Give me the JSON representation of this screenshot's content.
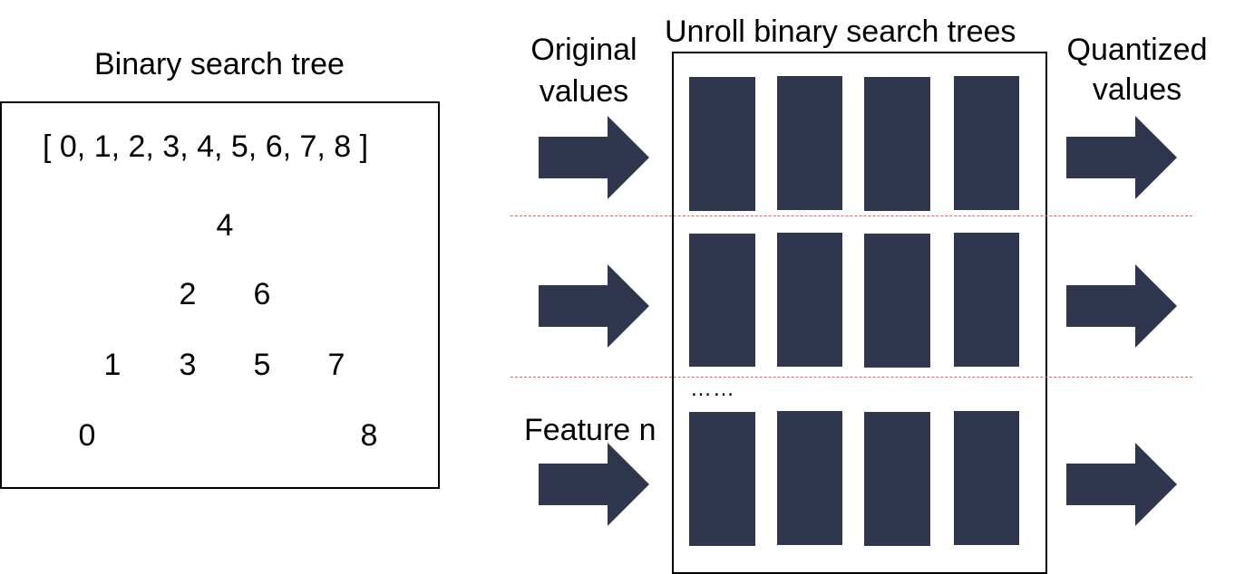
{
  "left_panel": {
    "title": "Binary search tree",
    "array_label": "[ 0, 1, 2, 3, 4, 5, 6, 7, 8 ]",
    "tree": {
      "level1": [
        "4"
      ],
      "level2": [
        "2",
        "6"
      ],
      "level3": [
        "1",
        "3",
        "5",
        "7"
      ],
      "level4": [
        "0",
        "8"
      ]
    }
  },
  "right_panel": {
    "input_label_line1": "Original",
    "input_label_line2": "values",
    "unroll_title": "Unroll binary search trees",
    "output_label_line1": "Quantized",
    "output_label_line2": "values",
    "ellipsis": "……",
    "last_row_label": "Feature n",
    "rows": 3,
    "blocks_per_row": 4
  },
  "colors": {
    "block_fill": "#2f364d",
    "arrow_fill": "#2f364d",
    "separator": "#e06666"
  }
}
